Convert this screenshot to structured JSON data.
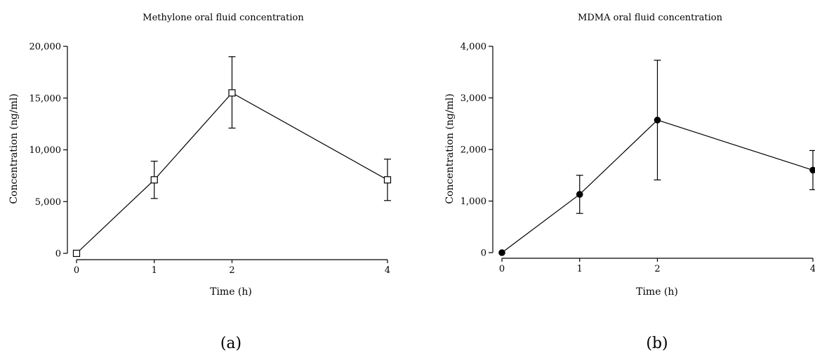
{
  "chart_data": [
    {
      "type": "line",
      "title": "Methylone oral fluid concentration",
      "xlabel": "Time (h)",
      "ylabel": "Concentration (ng/ml)",
      "panel_label": "(a)",
      "x": [
        0,
        1,
        2,
        4
      ],
      "xticks": [
        "0",
        "1",
        "2",
        "4"
      ],
      "xlim": [
        0,
        4
      ],
      "yticks": [
        "0",
        "5,000",
        "10,000",
        "15,000",
        "20,000"
      ],
      "ytick_values": [
        0,
        5000,
        10000,
        15000,
        20000
      ],
      "ylim": [
        0,
        20000
      ],
      "marker": "open-square",
      "series": [
        {
          "values": [
            0,
            7100,
            15500,
            7100
          ],
          "err_upper": [
            0,
            8900,
            19000,
            9100
          ],
          "err_lower": [
            0,
            5300,
            12100,
            5100
          ]
        }
      ],
      "grid": false
    },
    {
      "type": "line",
      "title": "MDMA oral fluid concentration",
      "xlabel": "Time (h)",
      "ylabel": "Concentration (ng/ml)",
      "panel_label": "(b)",
      "x": [
        0,
        1,
        2,
        4
      ],
      "xticks": [
        "0",
        "1",
        "2",
        "4"
      ],
      "xlim": [
        0,
        4
      ],
      "yticks": [
        "0",
        "1,000",
        "2,000",
        "3,000",
        "4,000"
      ],
      "ytick_values": [
        0,
        1000,
        2000,
        3000,
        4000
      ],
      "ylim": [
        0,
        4000
      ],
      "marker": "filled-circle",
      "series": [
        {
          "values": [
            0,
            1130,
            2570,
            1600
          ],
          "err_upper": [
            0,
            1500,
            3730,
            1980
          ],
          "err_lower": [
            0,
            760,
            1410,
            1220
          ]
        }
      ],
      "grid": false
    }
  ]
}
